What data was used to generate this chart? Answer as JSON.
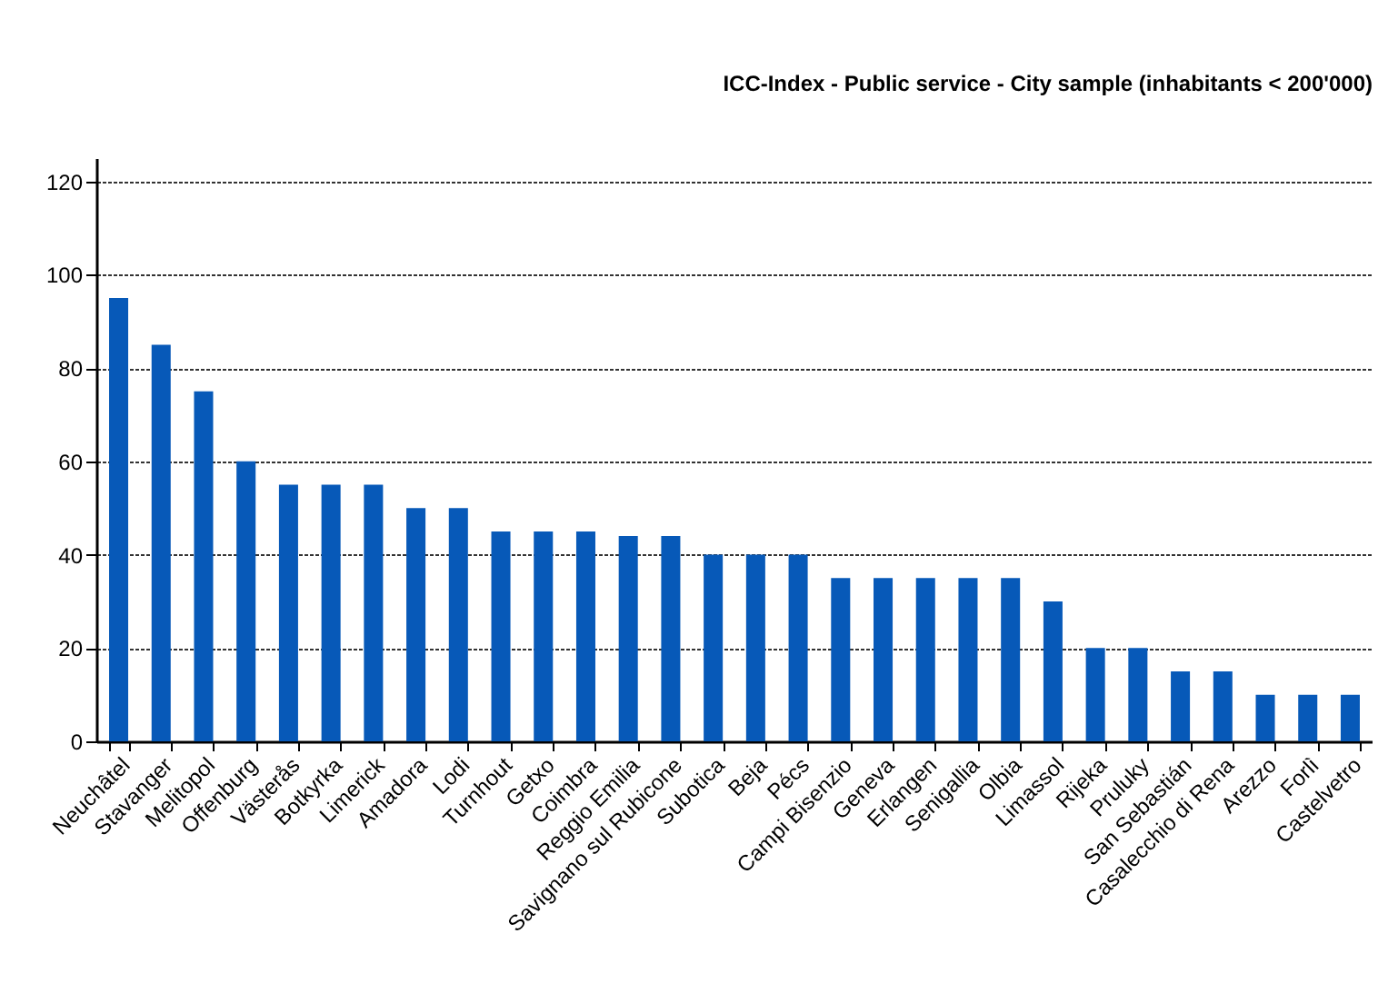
{
  "chart_data": {
    "type": "bar",
    "title": "ICC-Index - Public service - City sample (inhabitants < 200'000)",
    "categories": [
      "Neuchâtel",
      "Stavanger",
      "Melitopol",
      "Offenburg",
      "Västerås",
      "Botkyrka",
      "Limerick",
      "Amadora",
      "Lodi",
      "Turnhout",
      "Getxo",
      "Coimbra",
      "Reggio Emilia",
      "Savignano sul Rubicone",
      "Subotica",
      "Beja",
      "Pécs",
      "Campi Bisenzio",
      "Geneva",
      "Erlangen",
      "Senigallia",
      "Olbia",
      "Limassol",
      "Rijeka",
      "Pruluky",
      "San Sebastián",
      "Casalecchio di Rena",
      "Arezzo",
      "Forlì",
      "Castelvetro"
    ],
    "values": [
      95,
      85,
      75,
      60,
      55,
      55,
      55,
      50,
      50,
      45,
      45,
      45,
      44,
      44,
      40,
      40,
      40,
      35,
      35,
      35,
      35,
      35,
      30,
      20,
      20,
      15,
      15,
      10,
      10,
      10
    ],
    "color": "#0759b8",
    "ylim": [
      0,
      125
    ],
    "yticks": [
      0,
      20,
      40,
      60,
      80,
      100,
      120
    ],
    "grid": "y"
  }
}
